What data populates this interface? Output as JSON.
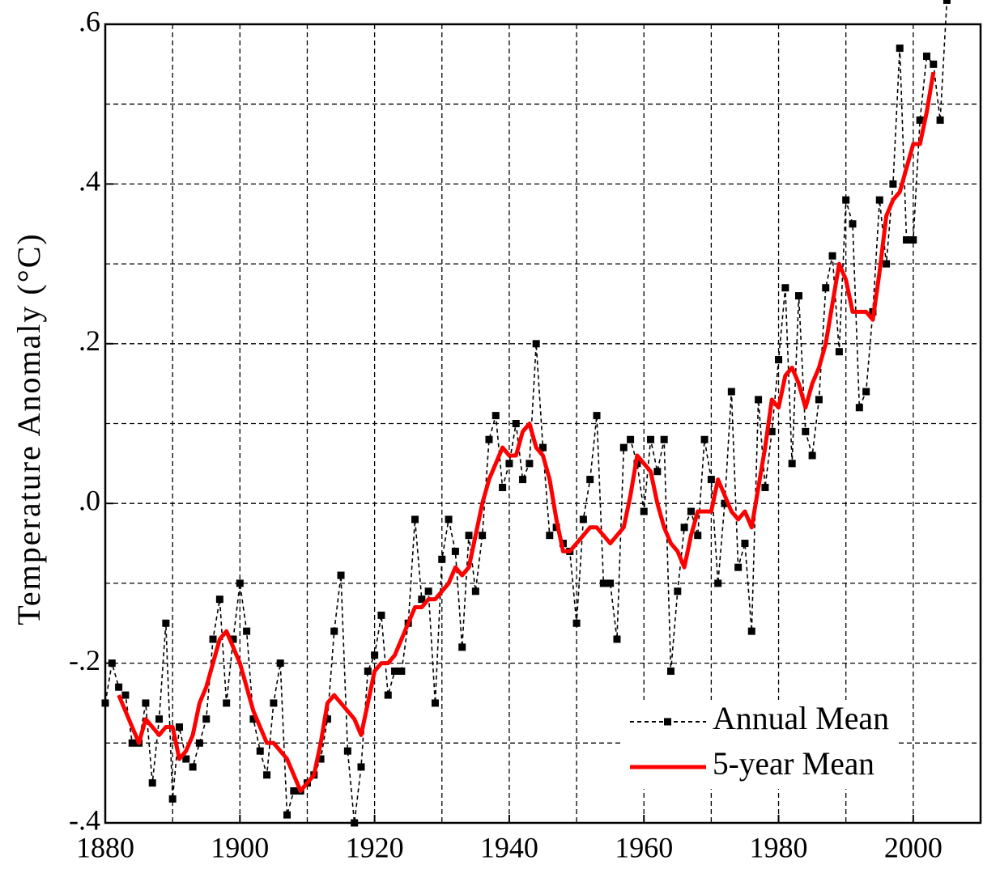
{
  "chart_data": {
    "type": "line",
    "y_label": "Temperature Anomaly (°C)",
    "xlim": [
      1880,
      2010
    ],
    "ylim": [
      -0.4,
      0.6
    ],
    "xticks": [
      1880,
      1900,
      1920,
      1940,
      1960,
      1980,
      2000
    ],
    "yticks": [
      {
        "value": -0.4,
        "label": "-.4"
      },
      {
        "value": -0.2,
        "label": "-.2"
      },
      {
        "value": 0,
        "label": ".0"
      },
      {
        "value": 0.2,
        "label": ".2"
      },
      {
        "value": 0.4,
        "label": ".4"
      },
      {
        "value": 0.6,
        "label": ".6"
      }
    ],
    "x_minor_ticks": [
      1890,
      1910,
      1930,
      1950,
      1970,
      1990
    ],
    "y_minor_ticks": [
      -0.3,
      -0.1,
      0.1,
      0.3,
      0.5
    ],
    "grid": true,
    "legend": "lower right",
    "series": [
      {
        "name": "Annual Mean",
        "color": "#000000",
        "style": "dashed",
        "marker": "square",
        "x": [
          1880,
          1881,
          1882,
          1883,
          1884,
          1885,
          1886,
          1887,
          1888,
          1889,
          1890,
          1891,
          1892,
          1893,
          1894,
          1895,
          1896,
          1897,
          1898,
          1899,
          1900,
          1901,
          1902,
          1903,
          1904,
          1905,
          1906,
          1907,
          1908,
          1909,
          1910,
          1911,
          1912,
          1913,
          1914,
          1915,
          1916,
          1917,
          1918,
          1919,
          1920,
          1921,
          1922,
          1923,
          1924,
          1925,
          1926,
          1927,
          1928,
          1929,
          1930,
          1931,
          1932,
          1933,
          1934,
          1935,
          1936,
          1937,
          1938,
          1939,
          1940,
          1941,
          1942,
          1943,
          1944,
          1945,
          1946,
          1947,
          1948,
          1949,
          1950,
          1951,
          1952,
          1953,
          1954,
          1955,
          1956,
          1957,
          1958,
          1959,
          1960,
          1961,
          1962,
          1963,
          1964,
          1965,
          1966,
          1967,
          1968,
          1969,
          1970,
          1971,
          1972,
          1973,
          1974,
          1975,
          1976,
          1977,
          1978,
          1979,
          1980,
          1981,
          1982,
          1983,
          1984,
          1985,
          1986,
          1987,
          1988,
          1989,
          1990,
          1991,
          1992,
          1993,
          1994,
          1995,
          1996,
          1997,
          1998,
          1999,
          2000,
          2001,
          2002,
          2003,
          2004,
          2005
        ],
        "values": [
          -0.25,
          -0.2,
          -0.23,
          -0.24,
          -0.3,
          -0.3,
          -0.25,
          -0.35,
          -0.27,
          -0.15,
          -0.37,
          -0.28,
          -0.32,
          -0.33,
          -0.3,
          -0.27,
          -0.17,
          -0.12,
          -0.25,
          -0.17,
          -0.1,
          -0.16,
          -0.27,
          -0.31,
          -0.34,
          -0.25,
          -0.2,
          -0.39,
          -0.36,
          -0.36,
          -0.35,
          -0.34,
          -0.32,
          -0.27,
          -0.16,
          -0.09,
          -0.31,
          -0.4,
          -0.33,
          -0.21,
          -0.19,
          -0.14,
          -0.24,
          -0.21,
          -0.21,
          -0.15,
          -0.02,
          -0.12,
          -0.11,
          -0.25,
          -0.07,
          -0.02,
          -0.06,
          -0.18,
          -0.04,
          -0.11,
          -0.04,
          0.08,
          0.11,
          0.02,
          0.05,
          0.1,
          0.03,
          0.05,
          0.2,
          0.07,
          -0.04,
          -0.03,
          -0.05,
          -0.06,
          -0.15,
          -0.02,
          0.03,
          0.11,
          -0.1,
          -0.1,
          -0.17,
          0.07,
          0.08,
          0.05,
          -0.01,
          0.08,
          0.04,
          0.08,
          -0.21,
          -0.11,
          -0.03,
          -0.01,
          -0.04,
          0.08,
          0.03,
          -0.1,
          0,
          0.14,
          -0.08,
          -0.05,
          -0.16,
          0.13,
          0.02,
          0.09,
          0.18,
          0.27,
          0.05,
          0.26,
          0.09,
          0.06,
          0.13,
          0.27,
          0.31,
          0.19,
          0.38,
          0.35,
          0.12,
          0.14,
          0.24,
          0.38,
          0.3,
          0.4,
          0.57,
          0.33,
          0.33,
          0.48,
          0.56,
          0.55,
          0.48,
          0.63
        ]
      },
      {
        "name": "5-year Mean",
        "color": "#ff0000",
        "style": "solid",
        "x": [
          1882,
          1883,
          1884,
          1885,
          1886,
          1887,
          1888,
          1889,
          1890,
          1891,
          1892,
          1893,
          1894,
          1895,
          1896,
          1897,
          1898,
          1899,
          1900,
          1901,
          1902,
          1903,
          1904,
          1905,
          1906,
          1907,
          1908,
          1909,
          1910,
          1911,
          1912,
          1913,
          1914,
          1915,
          1916,
          1917,
          1918,
          1919,
          1920,
          1921,
          1922,
          1923,
          1924,
          1925,
          1926,
          1927,
          1928,
          1929,
          1930,
          1931,
          1932,
          1933,
          1934,
          1935,
          1936,
          1937,
          1938,
          1939,
          1940,
          1941,
          1942,
          1943,
          1944,
          1945,
          1946,
          1947,
          1948,
          1949,
          1950,
          1951,
          1952,
          1953,
          1954,
          1955,
          1956,
          1957,
          1958,
          1959,
          1960,
          1961,
          1962,
          1963,
          1964,
          1965,
          1966,
          1967,
          1968,
          1969,
          1970,
          1971,
          1972,
          1973,
          1974,
          1975,
          1976,
          1977,
          1978,
          1979,
          1980,
          1981,
          1982,
          1983,
          1984,
          1985,
          1986,
          1987,
          1988,
          1989,
          1990,
          1991,
          1992,
          1993,
          1994,
          1995,
          1996,
          1997,
          1998,
          1999,
          2000,
          2001,
          2002,
          2003
        ],
        "values": [
          -0.24,
          -0.26,
          -0.28,
          -0.3,
          -0.27,
          -0.28,
          -0.29,
          -0.28,
          -0.28,
          -0.32,
          -0.31,
          -0.29,
          -0.25,
          -0.23,
          -0.2,
          -0.17,
          -0.16,
          -0.18,
          -0.2,
          -0.23,
          -0.26,
          -0.28,
          -0.3,
          -0.3,
          -0.31,
          -0.32,
          -0.34,
          -0.36,
          -0.35,
          -0.34,
          -0.3,
          -0.25,
          -0.24,
          -0.25,
          -0.26,
          -0.27,
          -0.29,
          -0.25,
          -0.21,
          -0.2,
          -0.2,
          -0.19,
          -0.17,
          -0.15,
          -0.13,
          -0.13,
          -0.12,
          -0.12,
          -0.11,
          -0.1,
          -0.08,
          -0.09,
          -0.08,
          -0.04,
          0,
          0.03,
          0.05,
          0.07,
          0.06,
          0.06,
          0.09,
          0.1,
          0.07,
          0.06,
          0.03,
          -0.02,
          -0.06,
          -0.06,
          -0.05,
          -0.04,
          -0.03,
          -0.03,
          -0.04,
          -0.05,
          -0.04,
          -0.03,
          0.01,
          0.06,
          0.05,
          0.04,
          0,
          -0.03,
          -0.05,
          -0.06,
          -0.08,
          -0.04,
          -0.01,
          -0.01,
          -0.01,
          0.03,
          0.01,
          -0.01,
          -0.02,
          -0.01,
          -0.03,
          0.02,
          0.07,
          0.13,
          0.12,
          0.16,
          0.17,
          0.15,
          0.12,
          0.15,
          0.17,
          0.2,
          0.25,
          0.3,
          0.28,
          0.24,
          0.24,
          0.24,
          0.23,
          0.29,
          0.36,
          0.38,
          0.39,
          0.42,
          0.45,
          0.45,
          0.49,
          0.54
        ]
      }
    ]
  }
}
